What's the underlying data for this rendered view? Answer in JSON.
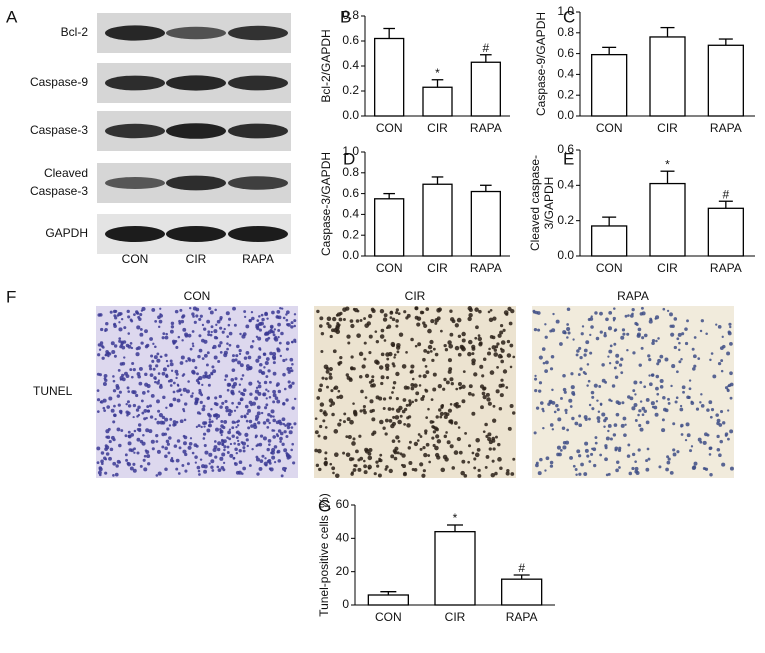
{
  "blot": {
    "panel": "A",
    "rows": [
      "Bcl-2",
      "Caspase-9",
      "Caspase-3",
      [
        "Cleaved",
        "Caspase-3"
      ],
      "GAPDH"
    ],
    "lanes": [
      "CON",
      "CIR",
      "RAPA"
    ]
  },
  "tunel": {
    "panel": "F",
    "row_label": "TUNEL",
    "columns": [
      "CON",
      "CIR",
      "RAPA"
    ]
  },
  "chart_data": [
    {
      "type": "bar",
      "panel": "B",
      "ylabel": "Bcl-2/GAPDH",
      "categories": [
        "CON",
        "CIR",
        "RAPA"
      ],
      "values": [
        0.62,
        0.23,
        0.43
      ],
      "errors": [
        0.08,
        0.06,
        0.06
      ],
      "annotations": [
        null,
        "*",
        "#"
      ],
      "color": "#ffffff",
      "ylim": [
        0,
        0.8
      ],
      "yticks": [
        {
          "value": 0,
          "label": "0.0"
        },
        0.2,
        0.4,
        0.6,
        0.8
      ]
    },
    {
      "type": "bar",
      "panel": "C",
      "ylabel": "Caspase-9/GAPDH",
      "categories": [
        "CON",
        "CIR",
        "RAPA"
      ],
      "values": [
        0.59,
        0.76,
        0.68
      ],
      "errors": [
        0.07,
        0.09,
        0.06
      ],
      "color": "#ffffff",
      "ylim": [
        0,
        1.0
      ],
      "yticks": [
        {
          "value": 0,
          "label": "0.0"
        },
        0.2,
        0.4,
        0.6,
        0.8,
        {
          "value": 1,
          "label": "1.0"
        }
      ]
    },
    {
      "type": "bar",
      "panel": "D",
      "ylabel": "Caspase-3/GAPDH",
      "categories": [
        "CON",
        "CIR",
        "RAPA"
      ],
      "values": [
        0.55,
        0.69,
        0.62
      ],
      "errors": [
        0.05,
        0.07,
        0.06
      ],
      "color": "#ffffff",
      "ylim": [
        0,
        1.0
      ],
      "yticks": [
        {
          "value": 0,
          "label": "0.0"
        },
        0.2,
        0.4,
        0.6,
        0.8,
        {
          "value": 1,
          "label": "1.0"
        }
      ]
    },
    {
      "type": "bar",
      "panel": "E",
      "ylabel": [
        "Cleaved caspase-",
        "3/GAPDH"
      ],
      "categories": [
        "CON",
        "CIR",
        "RAPA"
      ],
      "values": [
        0.17,
        0.41,
        0.27
      ],
      "errors": [
        0.05,
        0.07,
        0.04
      ],
      "annotations": [
        null,
        "*",
        "#"
      ],
      "color": "#ffffff",
      "ylim": [
        0,
        0.6
      ],
      "yticks": [
        {
          "value": 0,
          "label": "0.0"
        },
        0.2,
        0.4,
        0.6
      ]
    },
    {
      "type": "bar",
      "panel": "G",
      "ylabel": "Tunel-positive cells (%)",
      "categories": [
        "CON",
        "CIR",
        "RAPA"
      ],
      "values": [
        6,
        44,
        15.5
      ],
      "errors": [
        2,
        4,
        2.5
      ],
      "annotations": [
        null,
        "*",
        "#"
      ],
      "color": "#ffffff",
      "ylim": [
        0,
        60
      ],
      "yticks": [
        0,
        20,
        40,
        60
      ]
    }
  ]
}
